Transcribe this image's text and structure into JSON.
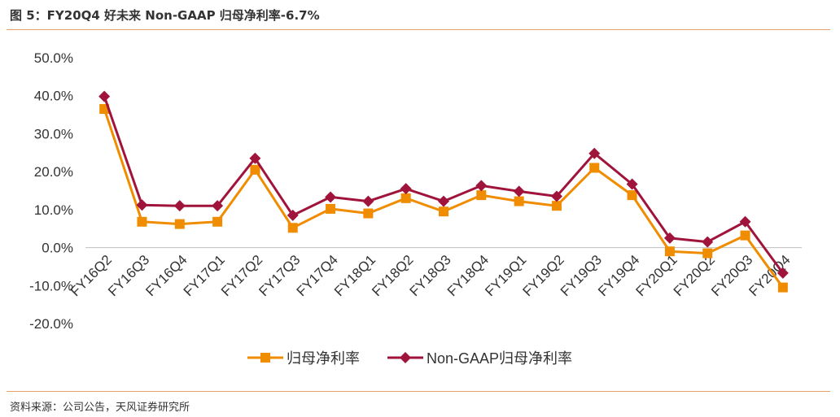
{
  "header": {
    "title": "图 5：FY20Q4 好未来 Non-GAAP 归母净利率-6.7%"
  },
  "footer": {
    "source": "资料来源：公司公告，天风证券研究所"
  },
  "colors": {
    "accent_rule": "#e8a06a",
    "series1": "#f08c00",
    "series2": "#a0143c",
    "axis": "#bfbfbf",
    "text": "#333333"
  },
  "chart_data": {
    "type": "line",
    "title": "",
    "xlabel": "",
    "ylabel": "",
    "ylim": [
      -20,
      50
    ],
    "yticks": [
      "50.0%",
      "40.0%",
      "30.0%",
      "20.0%",
      "10.0%",
      "0.0%",
      "-10.0%",
      "-20.0%"
    ],
    "ytick_values": [
      50,
      40,
      30,
      20,
      10,
      0,
      -10,
      -20
    ],
    "grid": false,
    "legend_position": "bottom",
    "categories": [
      "FY16Q2",
      "FY16Q3",
      "FY16Q4",
      "FY17Q1",
      "FY17Q2",
      "FY17Q3",
      "FY17Q4",
      "FY18Q1",
      "FY18Q2",
      "FY18Q3",
      "FY18Q4",
      "FY19Q1",
      "FY19Q2",
      "FY19Q3",
      "FY19Q4",
      "FY20Q1",
      "FY20Q2",
      "FY20Q3",
      "FY20Q4"
    ],
    "series": [
      {
        "name": "归母净利率",
        "marker": "square",
        "color": "#f08c00",
        "values": [
          36.5,
          6.8,
          6.2,
          6.8,
          20.5,
          5.2,
          10.2,
          9.0,
          13.0,
          9.5,
          13.8,
          12.2,
          11.0,
          21.0,
          13.8,
          -1.0,
          -1.5,
          3.2,
          -10.5
        ]
      },
      {
        "name": "Non-GAAP归母净利率",
        "marker": "diamond",
        "color": "#a0143c",
        "values": [
          39.8,
          11.2,
          11.0,
          11.0,
          23.5,
          8.5,
          13.3,
          12.2,
          15.5,
          12.2,
          16.3,
          14.8,
          13.5,
          24.8,
          16.7,
          2.5,
          1.5,
          6.8,
          -6.7
        ]
      }
    ]
  }
}
